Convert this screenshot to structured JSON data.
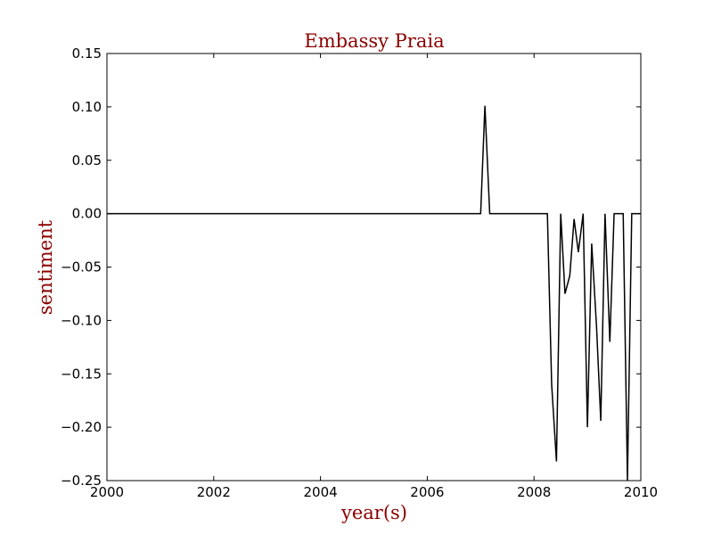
{
  "chart_data": {
    "type": "line",
    "title": "Embassy Praia",
    "xlabel": "year(s)",
    "ylabel": "sentiment",
    "xlim": [
      2000,
      2010
    ],
    "ylim": [
      -0.25,
      0.15
    ],
    "xticks": [
      2000,
      2002,
      2004,
      2006,
      2008,
      2010
    ],
    "yticks": [
      0.15,
      0.1,
      0.05,
      0.0,
      -0.05,
      -0.1,
      -0.15,
      -0.2,
      -0.25
    ],
    "xtick_labels": [
      "2000",
      "2002",
      "2004",
      "2006",
      "2008",
      "2010"
    ],
    "ytick_labels": [
      "0.15",
      "0.10",
      "0.05",
      "0.00",
      "−0.05",
      "−0.10",
      "−0.15",
      "−0.20",
      "−0.25"
    ],
    "grid": false,
    "line_color": "#000000",
    "label_color": "#8b0000",
    "series": [
      {
        "x": [
          2000.0,
          2007.0,
          2007.08,
          2007.17,
          2008.25,
          2008.33,
          2008.42,
          2008.5,
          2008.58,
          2008.67,
          2008.75,
          2008.83,
          2008.92,
          2009.0,
          2009.08,
          2009.17,
          2009.25,
          2009.33,
          2009.42,
          2009.5,
          2009.58,
          2009.67,
          2009.75,
          2009.83,
          2009.92,
          2010.0
        ],
        "y": [
          0.0,
          0.0,
          0.101,
          0.0,
          0.0,
          -0.16,
          -0.232,
          0.0,
          -0.075,
          -0.058,
          -0.005,
          -0.036,
          0.0,
          -0.2,
          -0.028,
          -0.105,
          -0.194,
          0.0,
          -0.12,
          0.0,
          0.0,
          0.0,
          -0.25,
          0.0,
          0.0,
          0.0
        ]
      }
    ]
  }
}
